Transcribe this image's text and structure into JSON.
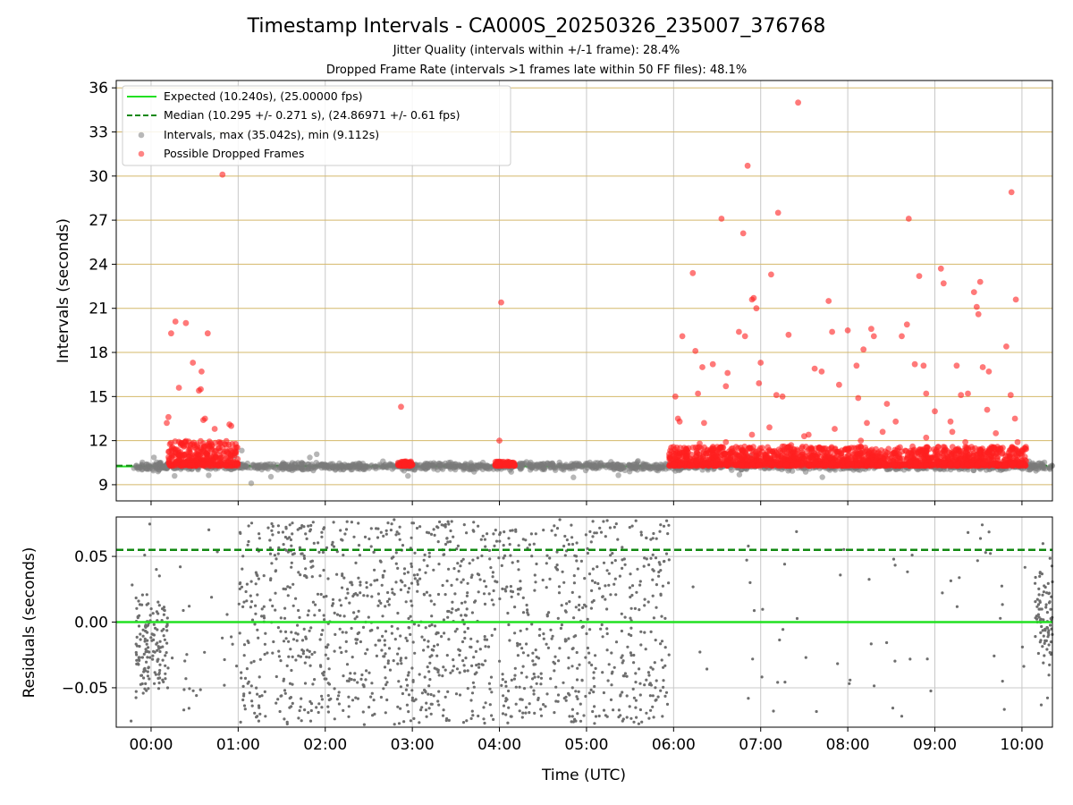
{
  "chart_data": {
    "type": "scatter",
    "title": "Timestamp Intervals - CA000S_20250326_235007_376768",
    "subtitles": [
      "Jitter Quality (intervals within +/-1 frame): 28.4%",
      "Dropped Frame Rate (intervals >1 frames late within 50 FF files): 48.1%"
    ],
    "xlabel": "Time (UTC)",
    "x_ticks": [
      "00:00",
      "01:00",
      "02:00",
      "03:00",
      "04:00",
      "05:00",
      "06:00",
      "07:00",
      "08:00",
      "09:00",
      "10:00"
    ],
    "x_range_hours": [
      -0.4,
      10.35
    ],
    "panels": [
      {
        "name": "intervals",
        "ylabel": "Intervals (seconds)",
        "ylim": [
          7.9,
          36.5
        ],
        "y_ticks": [
          9,
          12,
          15,
          18,
          21,
          24,
          27,
          30,
          33,
          36
        ],
        "grid": "horizontal gold + vertical gray",
        "legend": {
          "placement": "top-left",
          "entries": [
            {
              "label": "Expected (10.240s), (25.00000 fps)",
              "style": "solid",
              "color": "#22e022"
            },
            {
              "label": "Median (10.295 +/- 0.271 s), (24.86971 +/- 0.61 fps)",
              "style": "dashed",
              "color": "#118811"
            },
            {
              "label": "Intervals, max (35.042s), min (9.112s)",
              "style": "marker",
              "color": "#888888"
            },
            {
              "label": "Possible Dropped Frames",
              "style": "marker",
              "color": "#ff3333"
            }
          ]
        },
        "expected_interval": 10.24,
        "median_interval": 10.295,
        "dropped_frames_sample": [
          [
            0.18,
            13.2
          ],
          [
            0.2,
            13.6
          ],
          [
            0.23,
            19.3
          ],
          [
            0.28,
            20.1
          ],
          [
            0.32,
            15.6
          ],
          [
            0.4,
            20.0
          ],
          [
            0.48,
            17.3
          ],
          [
            0.55,
            15.4
          ],
          [
            0.57,
            15.5
          ],
          [
            0.58,
            16.7
          ],
          [
            0.6,
            13.4
          ],
          [
            0.62,
            13.5
          ],
          [
            0.65,
            19.3
          ],
          [
            0.73,
            12.8
          ],
          [
            0.82,
            30.1
          ],
          [
            0.9,
            13.1
          ],
          [
            0.92,
            13.0
          ],
          [
            2.87,
            14.3
          ],
          [
            4.0,
            12.0
          ],
          [
            4.02,
            21.4
          ],
          [
            6.02,
            15.0
          ],
          [
            6.05,
            13.5
          ],
          [
            6.07,
            13.3
          ],
          [
            6.1,
            19.1
          ],
          [
            6.22,
            23.4
          ],
          [
            6.25,
            18.1
          ],
          [
            6.28,
            15.2
          ],
          [
            6.33,
            17.0
          ],
          [
            6.35,
            13.2
          ],
          [
            6.45,
            17.2
          ],
          [
            6.55,
            27.1
          ],
          [
            6.6,
            15.7
          ],
          [
            6.62,
            16.6
          ],
          [
            6.75,
            19.4
          ],
          [
            6.8,
            26.1
          ],
          [
            6.82,
            19.1
          ],
          [
            6.85,
            30.7
          ],
          [
            6.9,
            21.6
          ],
          [
            6.92,
            21.7
          ],
          [
            6.95,
            21.0
          ],
          [
            6.98,
            15.9
          ],
          [
            7.0,
            17.3
          ],
          [
            7.12,
            23.3
          ],
          [
            7.18,
            15.1
          ],
          [
            7.2,
            27.5
          ],
          [
            7.25,
            15.0
          ],
          [
            7.32,
            19.2
          ],
          [
            7.43,
            35.0
          ],
          [
            7.55,
            12.4
          ],
          [
            7.62,
            16.9
          ],
          [
            7.7,
            16.7
          ],
          [
            7.78,
            21.5
          ],
          [
            7.82,
            19.4
          ],
          [
            7.9,
            15.8
          ],
          [
            8.0,
            19.5
          ],
          [
            8.1,
            17.1
          ],
          [
            8.12,
            14.9
          ],
          [
            8.18,
            18.2
          ],
          [
            8.22,
            13.2
          ],
          [
            8.27,
            19.6
          ],
          [
            8.3,
            19.1
          ],
          [
            8.45,
            14.5
          ],
          [
            8.55,
            13.3
          ],
          [
            8.62,
            19.1
          ],
          [
            8.68,
            19.9
          ],
          [
            8.7,
            27.1
          ],
          [
            8.77,
            17.2
          ],
          [
            8.82,
            23.2
          ],
          [
            8.87,
            17.1
          ],
          [
            8.9,
            15.2
          ],
          [
            9.0,
            14.0
          ],
          [
            9.07,
            23.7
          ],
          [
            9.1,
            22.7
          ],
          [
            9.18,
            13.3
          ],
          [
            9.25,
            17.1
          ],
          [
            9.3,
            15.1
          ],
          [
            9.38,
            15.2
          ],
          [
            9.45,
            22.1
          ],
          [
            9.48,
            21.1
          ],
          [
            9.5,
            20.6
          ],
          [
            9.52,
            22.8
          ],
          [
            9.55,
            17.0
          ],
          [
            9.6,
            14.1
          ],
          [
            9.62,
            16.7
          ],
          [
            9.82,
            18.4
          ],
          [
            9.87,
            15.1
          ],
          [
            9.88,
            28.9
          ],
          [
            9.93,
            21.6
          ],
          [
            9.92,
            13.5
          ]
        ],
        "dropped_frame_clusters": [
          {
            "x_range_hours": [
              0.2,
              1.0
            ],
            "y_range": [
              10.2,
              11.9
            ]
          },
          {
            "x_range_hours": [
              2.83,
              3.0
            ],
            "y_range": [
              10.2,
              10.5
            ]
          },
          {
            "x_range_hours": [
              3.95,
              4.18
            ],
            "y_range": [
              10.2,
              10.5
            ]
          },
          {
            "x_range_hours": [
              5.95,
              10.05
            ],
            "y_range": [
              10.2,
              11.5
            ]
          }
        ]
      },
      {
        "name": "residuals",
        "ylabel": "Residuals (seconds)",
        "ylim": [
          -0.08,
          0.08
        ],
        "y_ticks": [
          -0.05,
          0.0,
          0.05
        ],
        "y_tick_labels": [
          "−0.05",
          "0.00",
          "0.05"
        ],
        "expected_residual": 0.0,
        "median_residual": 0.055
      }
    ]
  }
}
